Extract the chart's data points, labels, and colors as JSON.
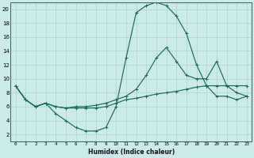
{
  "background_color": "#cdeaea",
  "grid_color": "#a8d5cc",
  "line_color": "#1a6b5a",
  "xlabel": "Humidex (Indice chaleur)",
  "xlim": [
    -0.5,
    23.5
  ],
  "ylim": [
    1,
    21
  ],
  "xticks": [
    0,
    1,
    2,
    3,
    4,
    5,
    6,
    7,
    8,
    9,
    10,
    11,
    12,
    13,
    14,
    15,
    16,
    17,
    18,
    19,
    20,
    21,
    22,
    23
  ],
  "yticks": [
    2,
    4,
    6,
    8,
    10,
    12,
    14,
    16,
    18,
    20
  ],
  "line1_x": [
    0,
    1,
    2,
    3,
    4,
    5,
    6,
    7,
    8,
    9,
    10,
    11,
    12,
    13,
    14,
    15,
    16,
    17,
    18,
    19,
    20,
    21,
    22,
    23
  ],
  "line1_y": [
    9,
    7,
    6,
    6.5,
    5,
    4,
    3,
    2.5,
    2.5,
    3,
    6,
    13,
    19.5,
    20.5,
    21,
    20.5,
    19,
    16.5,
    12,
    9,
    7.5,
    7.5,
    7,
    7.5
  ],
  "line2_x": [
    0,
    1,
    2,
    3,
    4,
    5,
    6,
    7,
    8,
    9,
    10,
    11,
    12,
    13,
    14,
    15,
    16,
    17,
    18,
    19,
    20,
    21,
    22,
    23
  ],
  "line2_y": [
    9,
    7,
    6,
    6.5,
    6,
    5.8,
    6,
    6,
    6.2,
    6.5,
    7,
    7.5,
    8.5,
    10.5,
    13,
    14.5,
    12.5,
    10.5,
    10,
    10,
    12.5,
    9,
    8,
    7.5
  ],
  "line3_x": [
    0,
    1,
    2,
    3,
    4,
    5,
    6,
    7,
    8,
    9,
    10,
    11,
    12,
    13,
    14,
    15,
    16,
    17,
    18,
    19,
    20,
    21,
    22,
    23
  ],
  "line3_y": [
    9,
    7,
    6,
    6.5,
    6,
    5.8,
    5.8,
    5.8,
    5.8,
    6,
    6.5,
    7,
    7.2,
    7.5,
    7.8,
    8,
    8.2,
    8.5,
    8.8,
    9,
    9,
    9,
    9,
    9
  ]
}
